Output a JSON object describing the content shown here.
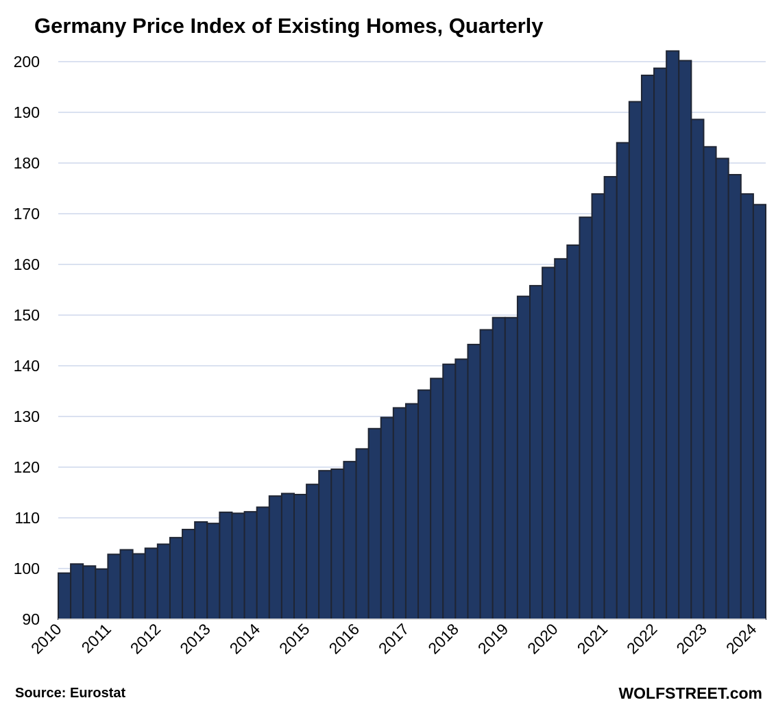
{
  "chart_data": {
    "type": "bar",
    "title": "Germany Price Index of Existing Homes, Quarterly",
    "xlabel": "",
    "ylabel": "",
    "ylim": [
      90,
      200
    ],
    "yticks": [
      90,
      100,
      110,
      120,
      130,
      140,
      150,
      160,
      170,
      180,
      190,
      200
    ],
    "xtick_labels": [
      "2010",
      "2011",
      "2012",
      "2013",
      "2014",
      "2015",
      "2016",
      "2017",
      "2018",
      "2019",
      "2020",
      "2021",
      "2022",
      "2023",
      "2024"
    ],
    "grid": true,
    "first_period": "2010 Q1",
    "last_period": "2024 Q1",
    "values": [
      99.1,
      100.9,
      100.5,
      99.9,
      102.8,
      103.7,
      102.9,
      104.0,
      104.8,
      106.1,
      107.7,
      109.2,
      108.9,
      111.1,
      110.9,
      111.2,
      112.1,
      114.3,
      114.8,
      114.6,
      116.6,
      119.3,
      119.6,
      121.1,
      123.6,
      127.6,
      129.8,
      131.7,
      132.5,
      135.2,
      137.5,
      140.3,
      141.3,
      144.2,
      147.1,
      149.5,
      149.5,
      153.7,
      155.8,
      159.4,
      161.1,
      163.8,
      169.3,
      173.9,
      177.3,
      184.0,
      192.1,
      197.3,
      198.7,
      202.1,
      200.2,
      188.6,
      183.2,
      180.9,
      177.7,
      173.9,
      171.8
    ],
    "colors": {
      "bar": "#203864",
      "bar_edge": "#1f2533",
      "grid": "#b4c3e0"
    }
  },
  "footer": {
    "source": "Source: Eurostat",
    "brand": "WOLFSTREET.com"
  }
}
